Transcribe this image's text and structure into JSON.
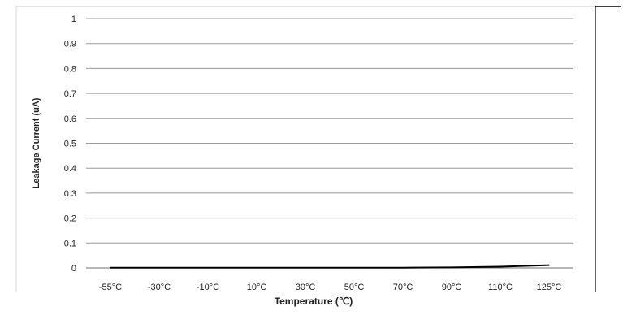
{
  "chart_data": {
    "type": "line",
    "title": "",
    "xlabel": "Temperature (℃)",
    "ylabel": "Leakage Current (uA)",
    "categories": [
      "-55°C",
      "-30°C",
      "-10°C",
      "10°C",
      "30°C",
      "50°C",
      "70°C",
      "90°C",
      "110°C",
      "125°C"
    ],
    "series": [
      {
        "values": [
          0.001,
          0.001,
          0.001,
          0.001,
          0.001,
          0.001,
          0.001,
          0.002,
          0.005,
          0.011
        ],
        "color": "#000000"
      }
    ],
    "yticks": [
      "0",
      "0.1",
      "0.2",
      "0.3",
      "0.4",
      "0.5",
      "0.6",
      "0.7",
      "0.8",
      "0.9",
      "1"
    ],
    "ylim": [
      0,
      1
    ],
    "grid": true,
    "legend": "none",
    "colors": {
      "grid": "#9a9a9a",
      "line": "#000000",
      "frame": "#000000"
    }
  }
}
